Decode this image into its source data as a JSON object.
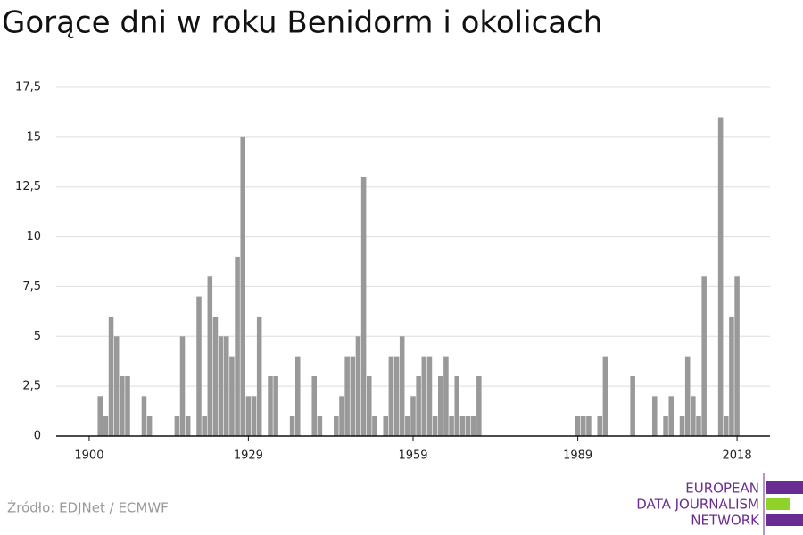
{
  "chart_data": {
    "type": "bar",
    "title": "Gorące dni w roku Benidorm i okolicach",
    "x": [
      1902,
      1903,
      1904,
      1905,
      1906,
      1907,
      1910,
      1911,
      1916,
      1917,
      1918,
      1920,
      1921,
      1922,
      1923,
      1924,
      1925,
      1926,
      1927,
      1928,
      1929,
      1930,
      1931,
      1933,
      1934,
      1937,
      1938,
      1941,
      1942,
      1945,
      1946,
      1947,
      1948,
      1949,
      1950,
      1951,
      1952,
      1954,
      1955,
      1956,
      1957,
      1958,
      1959,
      1960,
      1961,
      1962,
      1963,
      1964,
      1965,
      1966,
      1967,
      1968,
      1969,
      1970,
      1971,
      1989,
      1990,
      1991,
      1993,
      1994,
      1999,
      2003,
      2005,
      2006,
      2008,
      2009,
      2010,
      2011,
      2012,
      2015,
      2016,
      2017,
      2018
    ],
    "values": [
      2,
      1,
      6,
      5,
      3,
      3,
      2,
      1,
      1,
      5,
      1,
      7,
      1,
      8,
      6,
      5,
      5,
      4,
      9,
      15,
      2,
      2,
      6,
      3,
      3,
      1,
      4,
      3,
      1,
      1,
      2,
      4,
      4,
      5,
      13,
      3,
      1,
      1,
      4,
      4,
      5,
      1,
      2,
      3,
      4,
      4,
      1,
      3,
      4,
      1,
      3,
      1,
      1,
      1,
      3,
      1,
      1,
      1,
      1,
      4,
      3,
      2,
      1,
      2,
      1,
      4,
      2,
      1,
      8,
      16,
      1,
      6,
      8
    ],
    "color": "#999999",
    "xlim": [
      1894,
      2024
    ],
    "xticks": [
      1900,
      1929,
      1959,
      1989,
      2018
    ],
    "ylim": [
      0,
      17.5
    ],
    "yticks": [
      0,
      {
        "value": 2.5,
        "label": "2,5"
      },
      5,
      {
        "value": 7.5,
        "label": "7,5"
      },
      10,
      {
        "value": 12.5,
        "label": "12,5"
      },
      15,
      {
        "value": 17.5,
        "label": "17,5"
      }
    ],
    "grid": true,
    "source": "Źródło: EDJNet / ECMWF",
    "logo": [
      "EUROPEAN",
      "DATA JOURNALISM",
      "NETWORK"
    ]
  }
}
